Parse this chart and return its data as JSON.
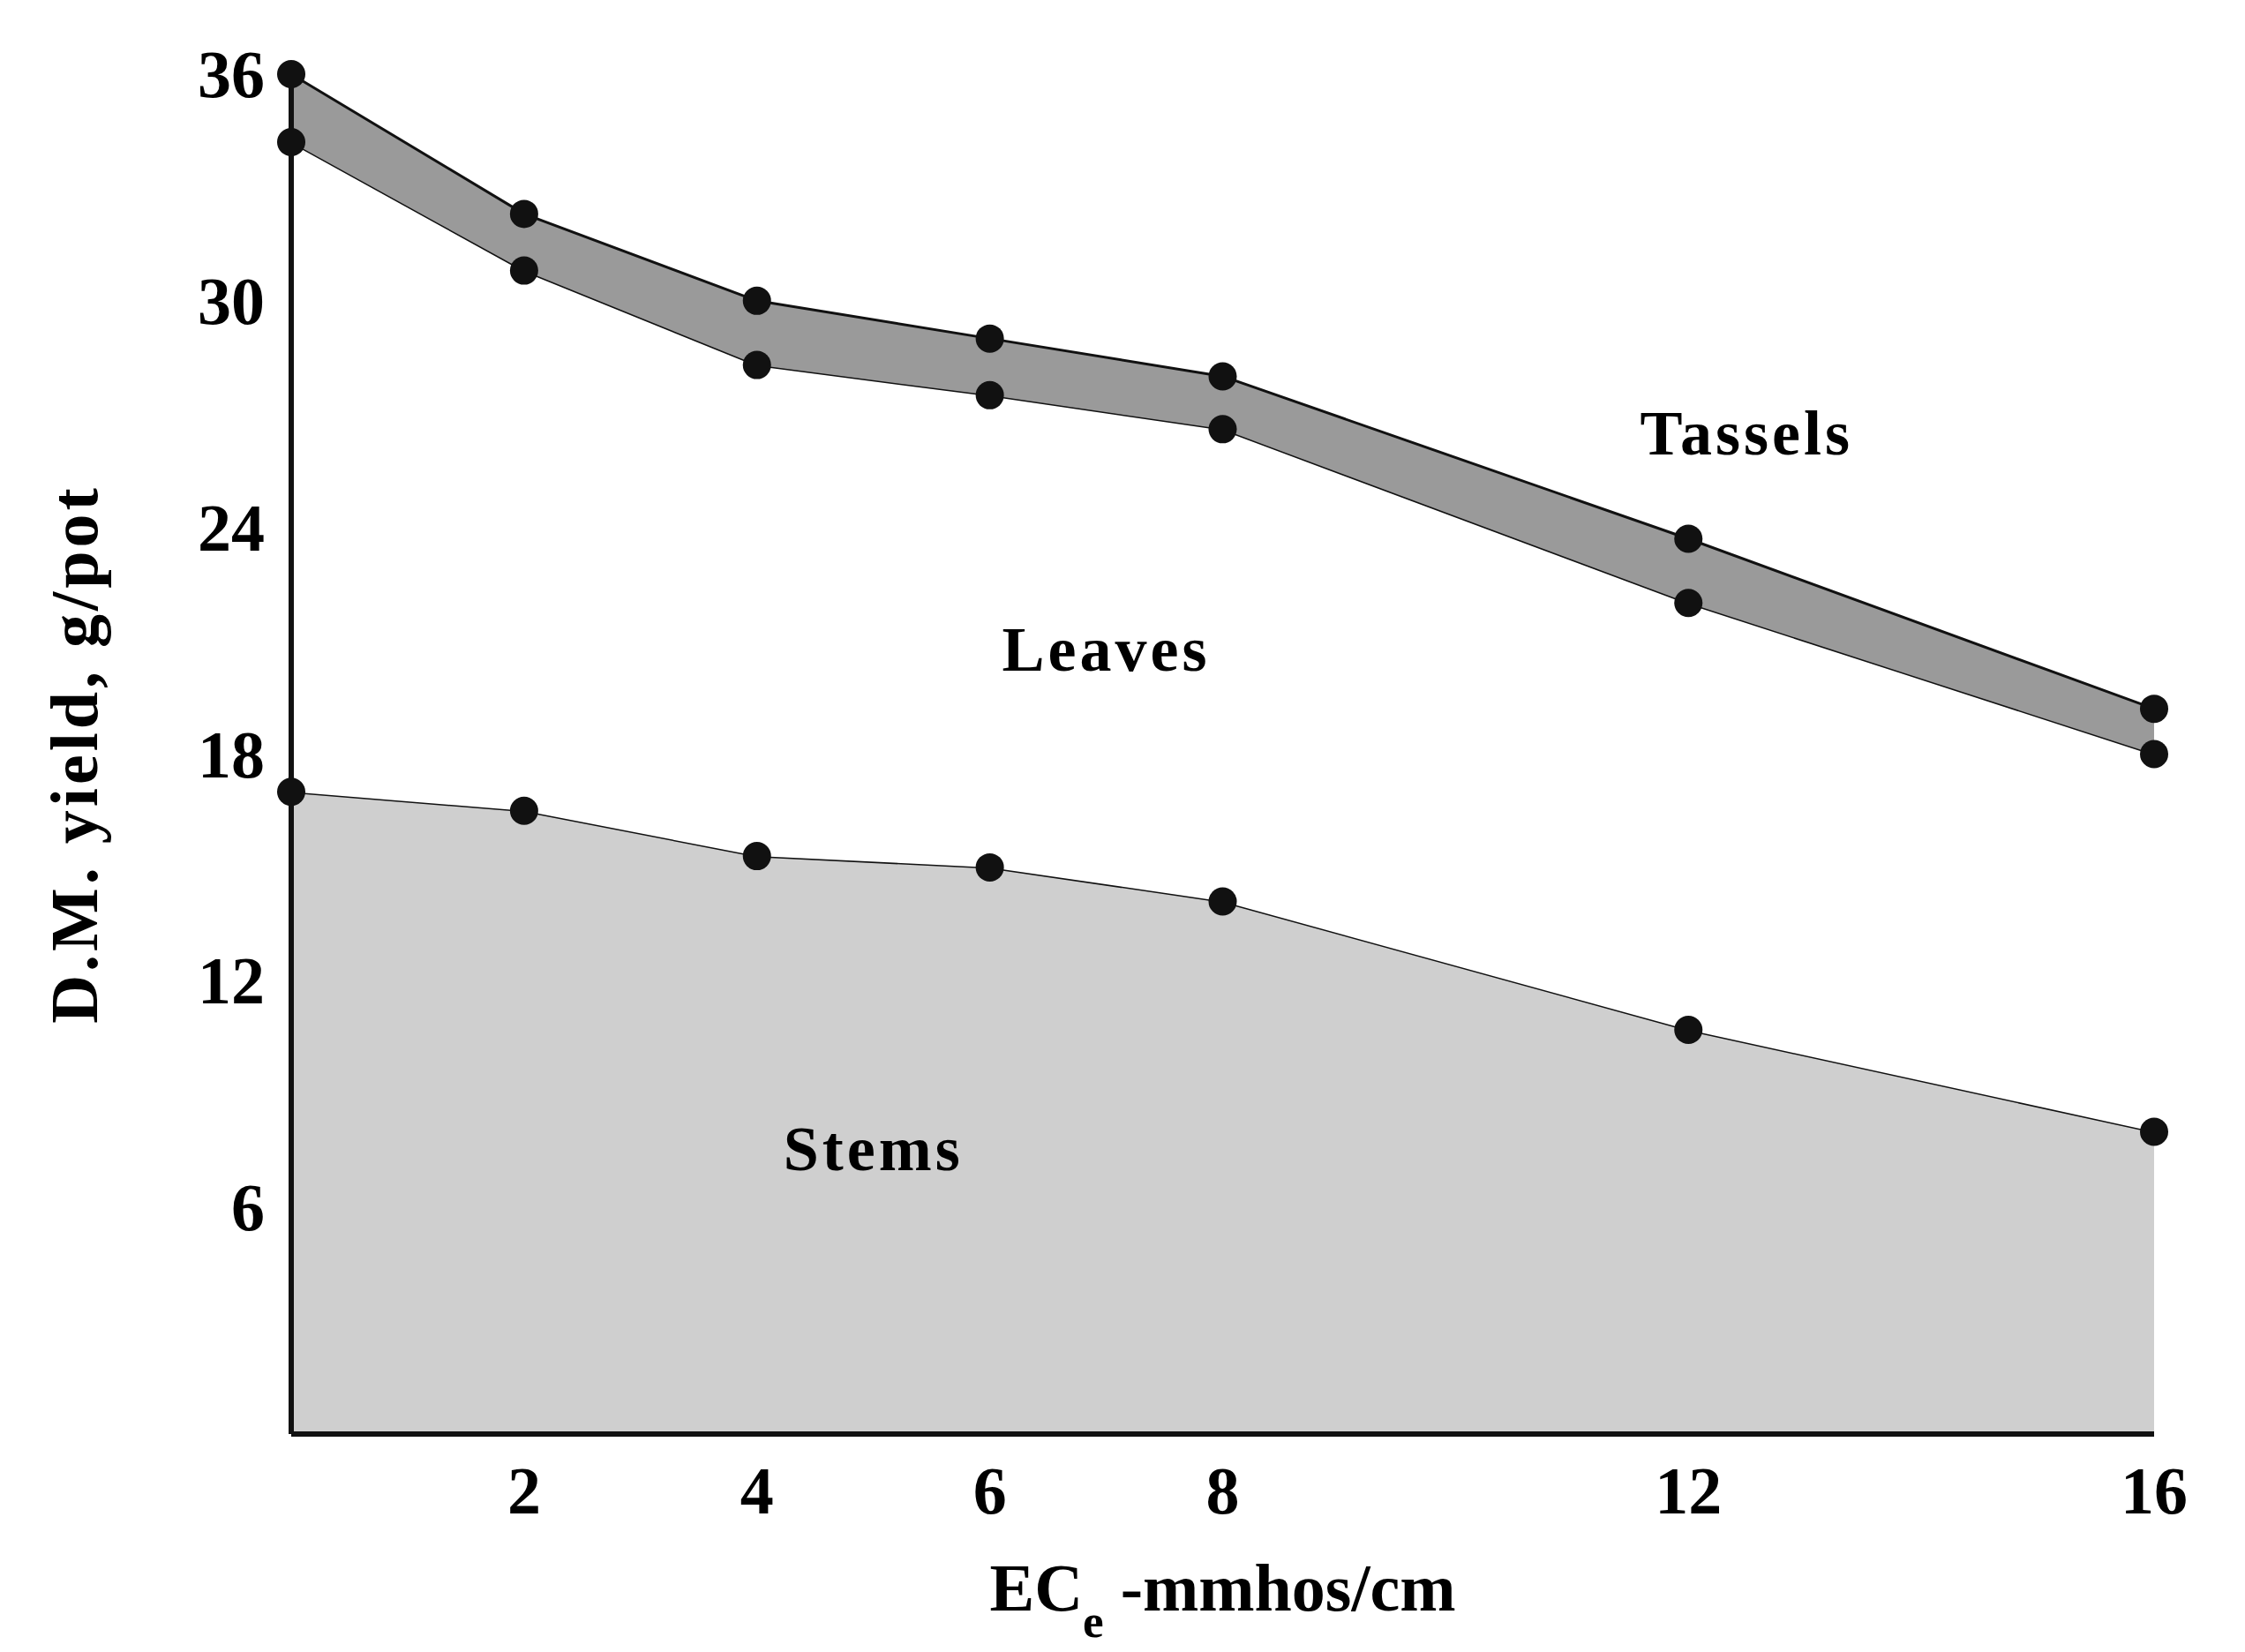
{
  "chart_data": {
    "type": "area",
    "stacked": true,
    "xlabel": "EC$_{e}$ -mmhos/cm",
    "ylabel": "D.M. yield, g/pot",
    "x": [
      0,
      2,
      4,
      6,
      8,
      12,
      16
    ],
    "series": [
      {
        "name": "Stems",
        "color": "#cfcfcf",
        "values": [
          17,
          16.5,
          15.3,
          15,
          14.1,
          10.7,
          8
        ]
      },
      {
        "name": "Leaves",
        "color": "#ffffff",
        "values": [
          17.2,
          14.3,
          13,
          12.5,
          12.5,
          11.3,
          10
        ]
      },
      {
        "name": "Tassels",
        "color": "#9a9a9a",
        "values": [
          1.8,
          1.5,
          1.7,
          1.5,
          1.4,
          1.7,
          1.2
        ]
      }
    ],
    "xlim": [
      0,
      16
    ],
    "xticks": [
      2,
      4,
      6,
      8,
      12,
      16
    ],
    "ylim": [
      0,
      36
    ],
    "yticks": [
      6,
      12,
      18,
      24,
      30,
      36
    ],
    "grid": false,
    "marker": "circle"
  }
}
